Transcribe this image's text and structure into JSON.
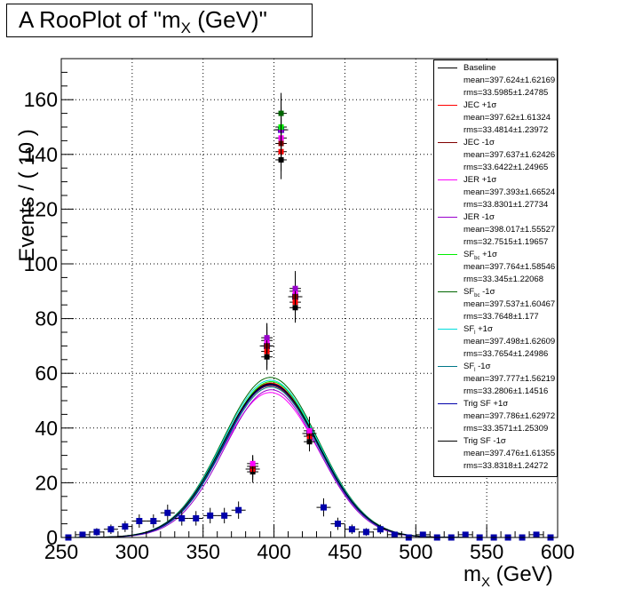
{
  "plot_title": "A RooPlot of \"m",
  "plot_title_sub": "X",
  "plot_title_end": " (GeV)\"",
  "chart_data": {
    "type": "scatter",
    "title": "A RooPlot of \"mX (GeV)\"",
    "xlabel_main": "m",
    "xlabel_sub": "X",
    "xlabel_end": " (GeV)",
    "ylabel": "Events / ( 10 )",
    "xlim": [
      250,
      600
    ],
    "ylim": [
      0,
      175
    ],
    "x_ticks": [
      250,
      300,
      350,
      400,
      450,
      500,
      550,
      600
    ],
    "y_ticks": [
      0,
      20,
      40,
      60,
      80,
      100,
      120,
      140,
      160
    ],
    "grid": true,
    "legend_placement": "top-right",
    "bin_width": 10,
    "data_x": [
      255,
      265,
      275,
      285,
      295,
      305,
      315,
      325,
      335,
      345,
      355,
      365,
      375,
      385,
      395,
      405,
      415,
      425,
      435,
      445,
      455,
      465,
      475,
      485,
      495,
      505,
      515,
      525,
      535,
      545,
      555,
      565,
      575,
      585,
      595
    ],
    "data_y_baseline": [
      0,
      1,
      2,
      3,
      4,
      6,
      6,
      9,
      7,
      7,
      8,
      8,
      10,
      25,
      70,
      149,
      88,
      38,
      11,
      5,
      3,
      2,
      3,
      1,
      0,
      1,
      0,
      0,
      1,
      0,
      0,
      0,
      0,
      1,
      0
    ],
    "peak_spread": [
      {
        "x": 395,
        "values": [
          66,
          68,
          70,
          72,
          73
        ]
      },
      {
        "x": 405,
        "values": [
          138,
          141,
          144,
          146,
          149,
          150,
          155
        ]
      },
      {
        "x": 415,
        "values": [
          84,
          86,
          88,
          90,
          91
        ]
      },
      {
        "x": 425,
        "values": [
          35,
          37,
          38,
          39
        ]
      },
      {
        "x": 385,
        "values": [
          24,
          25,
          26,
          27
        ]
      }
    ],
    "fit_peak_range": [
      53,
      59
    ],
    "series": [
      {
        "name": "Baseline",
        "color": "#000000",
        "mean": "mean=397.624±1.62169",
        "rms": "rms=33.5985±1.24785",
        "peak": 56,
        "mu": 397.6,
        "sigma": 33.6
      },
      {
        "name": "JEC +1σ",
        "color": "#ff0000",
        "mean": "mean=397.62±1.61324",
        "rms": "rms=33.4814±1.23972",
        "peak": 56.5,
        "mu": 397.6,
        "sigma": 33.5
      },
      {
        "name": "JEC -1σ",
        "color": "#800000",
        "mean": "mean=397.637±1.62426",
        "rms": "rms=33.6422±1.24965",
        "peak": 55.5,
        "mu": 397.6,
        "sigma": 33.6
      },
      {
        "name": "JER +1σ",
        "color": "#ff00ff",
        "mean": "mean=397.393±1.66524",
        "rms": "rms=33.8301±1.27734",
        "peak": 53,
        "mu": 397.4,
        "sigma": 33.8
      },
      {
        "name": "JER -1σ",
        "color": "#9900cc",
        "mean": "mean=398.017±1.55527",
        "rms": "rms=32.7515±1.19657",
        "peak": 54,
        "mu": 398.0,
        "sigma": 32.8
      },
      {
        "name": "SF",
        "name_sub": "bc",
        "name_end": " +1σ",
        "color": "#00ee00",
        "mean": "mean=397.764±1.58546",
        "rms": "rms=33.345±1.22068",
        "peak": 57,
        "mu": 397.8,
        "sigma": 33.3
      },
      {
        "name": "SF",
        "name_sub": "bc",
        "name_end": " -1σ",
        "color": "#006600",
        "mean": "mean=397.537±1.60467",
        "rms": "rms=33.7648±1.177",
        "peak": 58.5,
        "mu": 397.5,
        "sigma": 33.8
      },
      {
        "name": "SF",
        "name_sub": "l",
        "name_end": " +1σ",
        "color": "#00dddd",
        "mean": "mean=397.498±1.62609",
        "rms": "rms=33.7654±1.24986",
        "peak": 57.5,
        "mu": 397.5,
        "sigma": 33.8
      },
      {
        "name": "SF",
        "name_sub": "l",
        "name_end": " -1σ",
        "color": "#007788",
        "mean": "mean=397.777±1.56219",
        "rms": "rms=33.2806±1.14516",
        "peak": 55,
        "mu": 397.8,
        "sigma": 33.3
      },
      {
        "name": "Trig SF +1σ",
        "color": "#0000aa",
        "mean": "mean=397.786±1.62972",
        "rms": "rms=33.3571±1.25309",
        "peak": 55.8,
        "mu": 397.8,
        "sigma": 33.4
      },
      {
        "name": "Trig SF -1σ",
        "color": "#000000",
        "mean": "mean=397.476±1.61355",
        "rms": "rms=33.8318±1.24272",
        "peak": 56.2,
        "mu": 397.5,
        "sigma": 33.8
      }
    ]
  }
}
